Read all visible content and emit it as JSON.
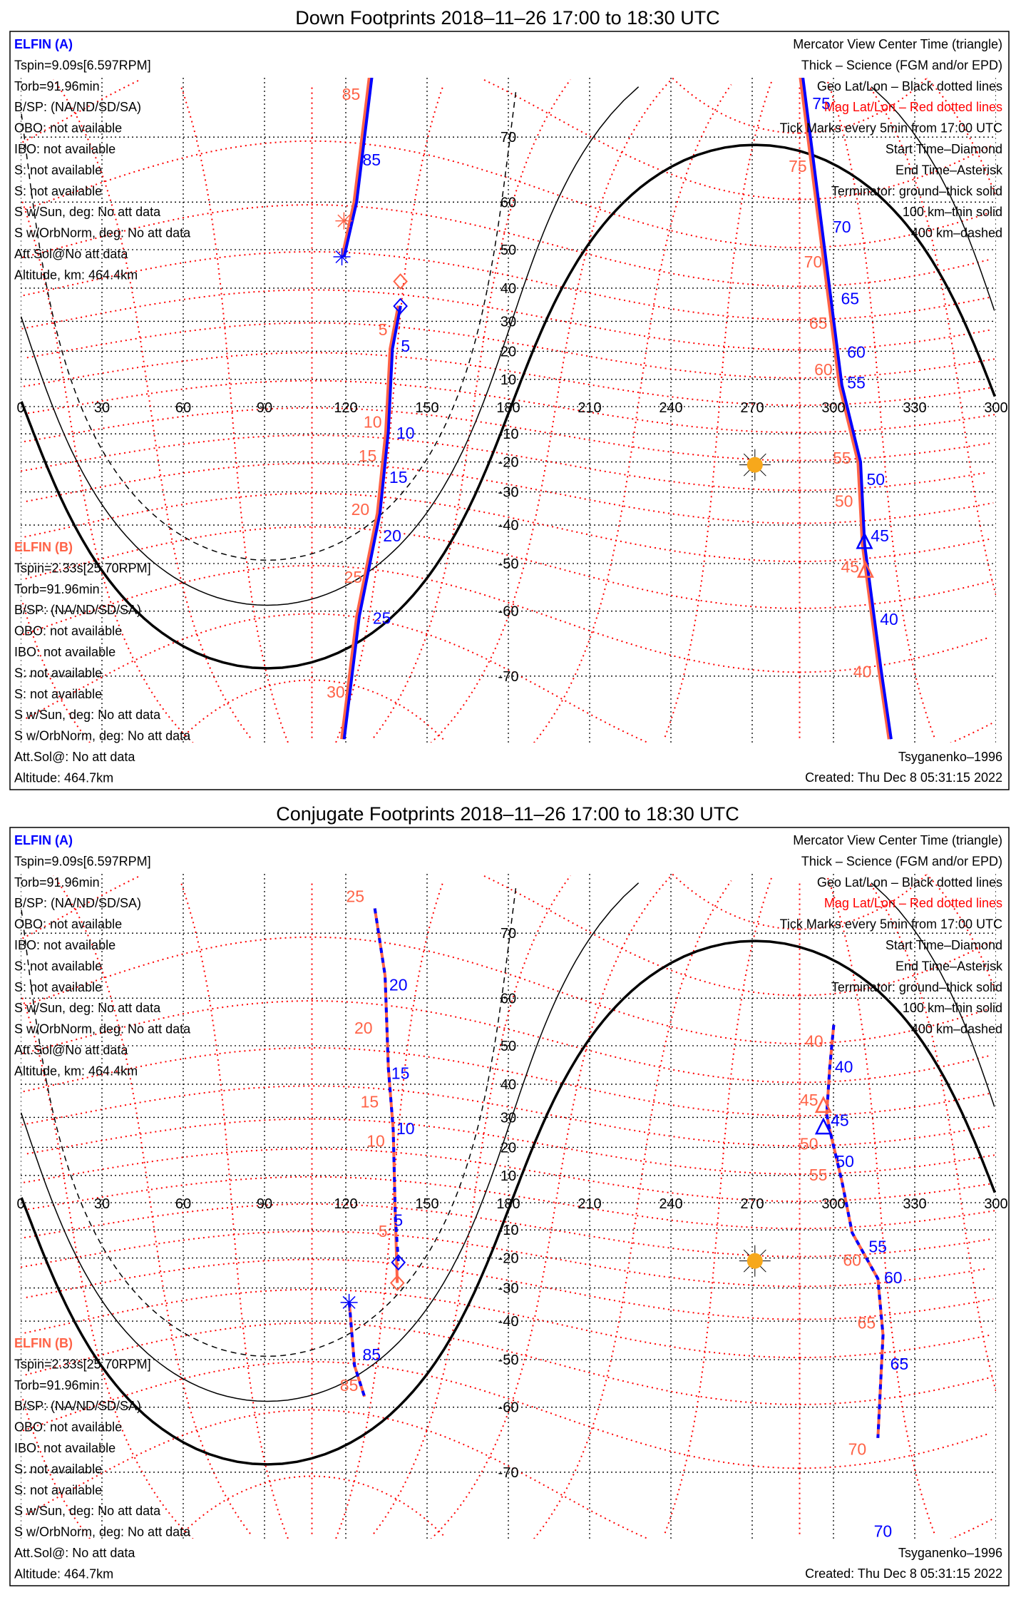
{
  "colors": {
    "a": "#0000ff",
    "b": "#ff6347",
    "mag_grid": "#ff0000",
    "geo_grid": "#000000",
    "sun": "#f7a81b"
  },
  "map": {
    "lon_labels": [
      "0",
      "30",
      "60",
      "90",
      "120",
      "150",
      "180",
      "210",
      "240",
      "270",
      "300",
      "330",
      "300"
    ],
    "lat_labels": [
      "70",
      "60",
      "50",
      "40",
      "30",
      "20",
      "10",
      "-10",
      "-20",
      "-30",
      "-40",
      "-50",
      "-60",
      "-70"
    ],
    "sun": {
      "lon": 271,
      "lat": -21
    }
  },
  "panels": [
    {
      "title": "Down Footprints 2018–11–26 17:00 to 18:30 UTC",
      "sc_a": {
        "name": "ELFIN (A)",
        "lines": [
          "Tspin=9.09s[6.597RPM]",
          "Torb=91.96min",
          "B/SP: (NA/ND/SD/SA)",
          "OBO: not available",
          "IBO: not available",
          "S: not available",
          "S: not available",
          "S w/Sun, deg: No att data",
          "S w/OrbNorm, deg: No att data",
          "Att.Sol@No att data",
          "Altitude, km: 464.4km"
        ]
      },
      "sc_b": {
        "name": "ELFIN (B)",
        "lines": [
          "Tspin=2.33s[25.70RPM]",
          "Torb=91.96min",
          "B/SP: (NA/ND/SD/SA)",
          "OBO: not available",
          "IBO: not available",
          "S: not available",
          "S: not available",
          "S w/Sun, deg: No att data",
          "S w/OrbNorm, deg: No att data",
          "Att.Sol@: No att data",
          "Altitude: 464.7km"
        ]
      },
      "legend": [
        "Mercator View Center Time (triangle)",
        "Thick – Science (FGM and/or EPD)",
        "Geo Lat/Lon – Black dotted lines",
        "Mag Lat/Lon – Red dotted lines",
        "Tick Marks every 5min from 17:00 UTC",
        "Start Time–Diamond",
        "End Time–Asterisk",
        "Terminator: ground–thick solid",
        "100 km–thin solid",
        "400 km–dashed"
      ],
      "model": "Tsyganenko–1996",
      "created": "Created: Thu Dec  8 05:31:15 2022",
      "tracks": {
        "a": [
          [
            [
              129.6,
              76.3
            ],
            [
              124,
              60
            ],
            [
              119.4,
              48.3
            ]
          ],
          [
            [
              140.2,
              34.8
            ],
            [
              137.2,
              20.8
            ],
            [
              135.7,
              -9.1
            ],
            [
              132.6,
              -36.6
            ],
            [
              125,
              -60.9
            ],
            [
              119.4,
              -76.6
            ]
          ],
          [
            [
              288.7,
              76.3
            ],
            [
              303.1,
              7.9
            ],
            [
              310,
              -20
            ],
            [
              311.5,
              -45.2
            ],
            [
              317.5,
              -69
            ],
            [
              321.3,
              -76.6
            ]
          ]
        ],
        "b": [
          [
            [
              128.9,
              76.3
            ],
            [
              123.3,
              60
            ],
            [
              118.9,
              48.3
            ]
          ],
          [
            [
              139.6,
              34.8
            ],
            [
              136.6,
              20.8
            ],
            [
              135,
              -9.1
            ],
            [
              131.9,
              -36.6
            ],
            [
              124.3,
              -60.9
            ],
            [
              118.7,
              -76.6
            ]
          ],
          [
            [
              288,
              76.3
            ],
            [
              302.4,
              7.9
            ],
            [
              309.3,
              -20
            ],
            [
              310.9,
              -45.2
            ],
            [
              316.9,
              -69
            ],
            [
              320.7,
              -76.6
            ]
          ]
        ]
      },
      "time_labels": {
        "a": [
          "85",
          "5",
          "10",
          "15",
          "20",
          "25",
          "75",
          "70",
          "65",
          "60",
          "55",
          "50",
          "45",
          "40"
        ],
        "b": [
          "85",
          "5",
          "10",
          "15",
          "20",
          "25",
          "30",
          "75",
          "70",
          "65",
          "60",
          "55",
          "50",
          "45",
          "40"
        ]
      }
    },
    {
      "title": "Conjugate Footprints 2018–11–26 17:00 to 18:30 UTC",
      "sc_a": {
        "name": "ELFIN (A)",
        "lines": [
          "Tspin=9.09s[6.597RPM]",
          "Torb=91.96min",
          "B/SP: (NA/ND/SD/SA)",
          "OBO: not available",
          "IBO: not available",
          "S: not available",
          "S: not available",
          "S w/Sun, deg: No att data",
          "S w/OrbNorm, deg: No att data",
          "Att.Sol@No att data",
          "Altitude, km: 464.4km"
        ]
      },
      "sc_b": {
        "name": "ELFIN (B)",
        "lines": [
          "Tspin=2.33s[25.70RPM]",
          "Torb=91.96min",
          "B/SP: (NA/ND/SD/SA)",
          "OBO: not available",
          "IBO: not available",
          "S: not available",
          "S: not available",
          "S w/Sun, deg: No att data",
          "S w/OrbNorm, deg: No att data",
          "Att.Sol@: No att data",
          "Altitude: 464.7km"
        ]
      },
      "legend": [
        "Mercator View Center Time (triangle)",
        "Thick – Science (FGM and/or EPD)",
        "Geo Lat/Lon – Black dotted lines",
        "Mag Lat/Lon – Red dotted lines",
        "Tick Marks every 5min from 17:00 UTC",
        "Start Time–Diamond",
        "End Time–Asterisk",
        "Terminator: ground–thick solid",
        "100 km–thin solid",
        "400 km–dashed"
      ],
      "model": "Tsyganenko–1996",
      "created": "Created: Thu Dec  8 05:31:15 2022",
      "tracks": {
        "a": [
          [
            [
              130.7,
              72.9
            ],
            [
              134.5,
              63.9
            ],
            [
              135.7,
              44.4
            ],
            [
              137.5,
              26
            ],
            [
              138.3,
              -5.3
            ],
            [
              139.4,
              -21.1
            ]
          ],
          [
            [
              121.3,
              -34.5
            ],
            [
              123.2,
              -51.4
            ],
            [
              126.9,
              -58
            ]
          ],
          [
            [
              300.1,
              54.7
            ],
            [
              298.6,
              44.4
            ],
            [
              297.5,
              31
            ],
            [
              298.6,
              26
            ],
            [
              303.1,
              7.9
            ],
            [
              306.9,
              -11
            ],
            [
              316.4,
              -27
            ],
            [
              318.3,
              -43.8
            ],
            [
              316.4,
              -65.2
            ],
            [
              313.8,
              -77
            ]
          ]
        ],
        "b": [
          [
            [
              130.7,
              72.9
            ],
            [
              134.5,
              63.9
            ],
            [
              135.7,
              44.4
            ],
            [
              137.5,
              26
            ],
            [
              138.3,
              -5.3
            ],
            [
              139,
              -28.4
            ]
          ],
          [
            [
              121.3,
              -34.5
            ],
            [
              123.2,
              -51.4
            ],
            [
              126.9,
              -58
            ]
          ],
          [
            [
              300.1,
              54.7
            ],
            [
              298.6,
              44.4
            ],
            [
              297.5,
              31
            ],
            [
              298.6,
              26
            ],
            [
              303.1,
              7.9
            ],
            [
              306.9,
              -11
            ],
            [
              316.4,
              -27
            ],
            [
              318.3,
              -43.8
            ],
            [
              316.4,
              -65.2
            ],
            [
              313.8,
              -77
            ]
          ]
        ]
      },
      "time_labels": {
        "a": [
          "20",
          "15",
          "10",
          "5",
          "85",
          "40",
          "45",
          "50",
          "55",
          "60",
          "65",
          "70"
        ],
        "b": [
          "25",
          "20",
          "15",
          "10",
          "5",
          "85",
          "40",
          "45",
          "50",
          "55",
          "60",
          "65",
          "70"
        ]
      }
    }
  ]
}
